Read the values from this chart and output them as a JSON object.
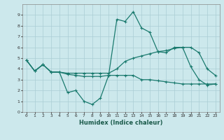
{
  "xlabel": "Humidex (Indice chaleur)",
  "ylabel": "",
  "x_values": [
    0,
    1,
    2,
    3,
    4,
    5,
    6,
    7,
    8,
    9,
    10,
    11,
    12,
    13,
    14,
    15,
    16,
    17,
    18,
    19,
    20,
    21,
    22,
    23
  ],
  "line1": [
    4.8,
    3.8,
    4.4,
    3.7,
    3.7,
    1.8,
    2.0,
    1.0,
    0.7,
    1.3,
    3.4,
    8.6,
    8.4,
    9.3,
    7.8,
    7.4,
    5.6,
    5.5,
    6.0,
    6.0,
    4.2,
    3.0,
    2.5,
    2.6
  ],
  "line2": [
    4.8,
    3.8,
    4.4,
    3.7,
    3.7,
    3.5,
    3.4,
    3.3,
    3.3,
    3.3,
    3.4,
    3.4,
    3.4,
    3.4,
    3.0,
    3.0,
    2.9,
    2.8,
    2.7,
    2.6,
    2.6,
    2.6,
    2.6,
    2.6
  ],
  "line3": [
    4.8,
    3.8,
    4.4,
    3.7,
    3.7,
    3.6,
    3.6,
    3.6,
    3.6,
    3.6,
    3.6,
    4.0,
    4.7,
    5.0,
    5.2,
    5.4,
    5.6,
    5.7,
    5.9,
    6.0,
    6.0,
    5.5,
    4.0,
    3.4
  ],
  "bg_color": "#cce8ec",
  "grid_color": "#aacdd4",
  "line_color": "#1a7a6e",
  "ylim": [
    0,
    10
  ],
  "xlim": [
    -0.5,
    23.5
  ],
  "yticks": [
    0,
    1,
    2,
    3,
    4,
    5,
    6,
    7,
    8,
    9
  ],
  "xticks": [
    0,
    1,
    2,
    3,
    4,
    5,
    6,
    7,
    8,
    9,
    10,
    11,
    12,
    13,
    14,
    15,
    16,
    17,
    18,
    19,
    20,
    21,
    22,
    23
  ]
}
